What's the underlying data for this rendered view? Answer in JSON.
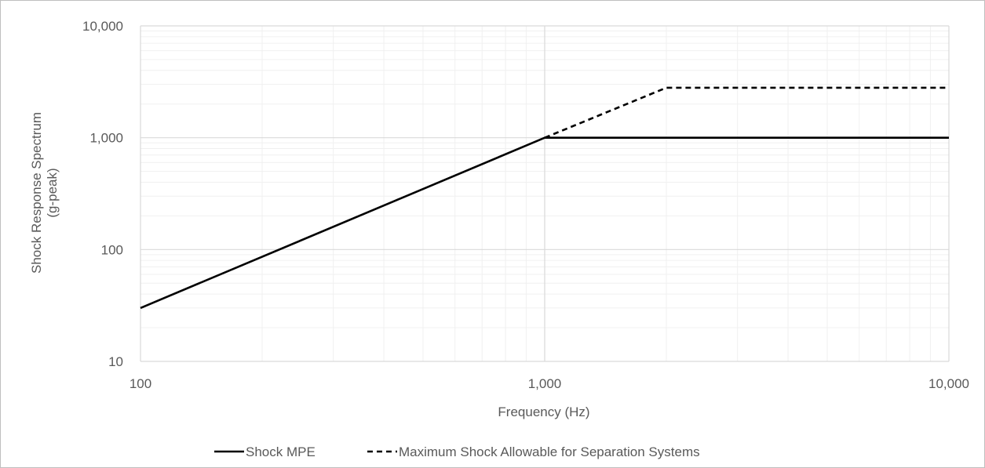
{
  "chart_data": {
    "type": "line",
    "title": "",
    "xlabel": "Frequency (Hz)",
    "ylabel": [
      "Shock Response Spectrum",
      "(g-peak)"
    ],
    "x_scale": "log",
    "y_scale": "log",
    "xlim": [
      100,
      10000
    ],
    "ylim": [
      10,
      10000
    ],
    "x_ticks": [
      {
        "value": 100,
        "label": "100"
      },
      {
        "value": 1000,
        "label": "1,000"
      },
      {
        "value": 10000,
        "label": "10,000"
      }
    ],
    "y_ticks": [
      {
        "value": 10,
        "label": "10"
      },
      {
        "value": 100,
        "label": "100"
      },
      {
        "value": 1000,
        "label": "1,000"
      },
      {
        "value": 10000,
        "label": "10,000"
      }
    ],
    "grid": true,
    "minor_grid": true,
    "legend_position": "bottom",
    "series": [
      {
        "name": "Shock MPE",
        "style": "solid",
        "color": "#000000",
        "points": [
          [
            100,
            30
          ],
          [
            1000,
            1000
          ],
          [
            10000,
            1000
          ]
        ]
      },
      {
        "name": "Maximum Shock Allowable for Separation Systems",
        "style": "dashed",
        "color": "#000000",
        "points": [
          [
            1000,
            1000
          ],
          [
            2000,
            2800
          ],
          [
            10000,
            2800
          ]
        ]
      }
    ]
  },
  "colors": {
    "major_grid": "#d9d9d9",
    "minor_grid": "#f0f0f0",
    "text": "#595959",
    "series": "#000000"
  }
}
